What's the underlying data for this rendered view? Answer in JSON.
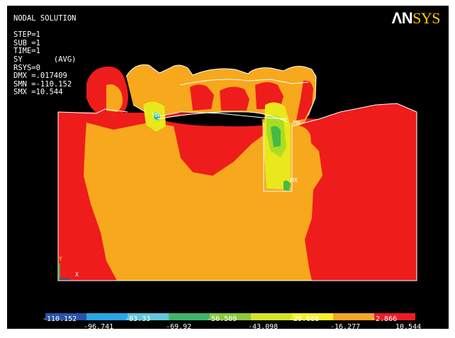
{
  "info": {
    "lines": [
      "NODAL SOLUTION",
      "",
      "STEP=1",
      "SUB =1",
      "TIME=1",
      "SY       (AVG)",
      "RSYS=0",
      "DMX =.017409",
      "SMN =-110.152",
      "SMX =10.544"
    ]
  },
  "logo": {
    "part1": "ΛN",
    "part2": "SYS"
  },
  "markers": {
    "mn": "MN",
    "mx": "MX",
    "axis_y": "Y",
    "axis_x": "X"
  },
  "colors": {
    "background": "#000000",
    "red": "#ef1c1c",
    "orange": "#f7a81c",
    "yellow": "#e8e81c",
    "lime": "#aadd22",
    "green": "#44bb44",
    "teal": "#22bbaa",
    "outline": "#ffffff"
  },
  "legend": {
    "colors": [
      "#2a52a8",
      "#2aa5e6",
      "#63c6da",
      "#3fb56b",
      "#8bc93f",
      "#d2e52a",
      "#f5f02b",
      "#f4a62a",
      "#ed1c24"
    ],
    "labels": [
      "-110.152",
      "-96.741",
      "-83.33",
      "-69.92",
      "-56.509",
      "-43.098",
      "-29.688",
      "-16.277",
      "-2.866",
      "10.544"
    ]
  }
}
